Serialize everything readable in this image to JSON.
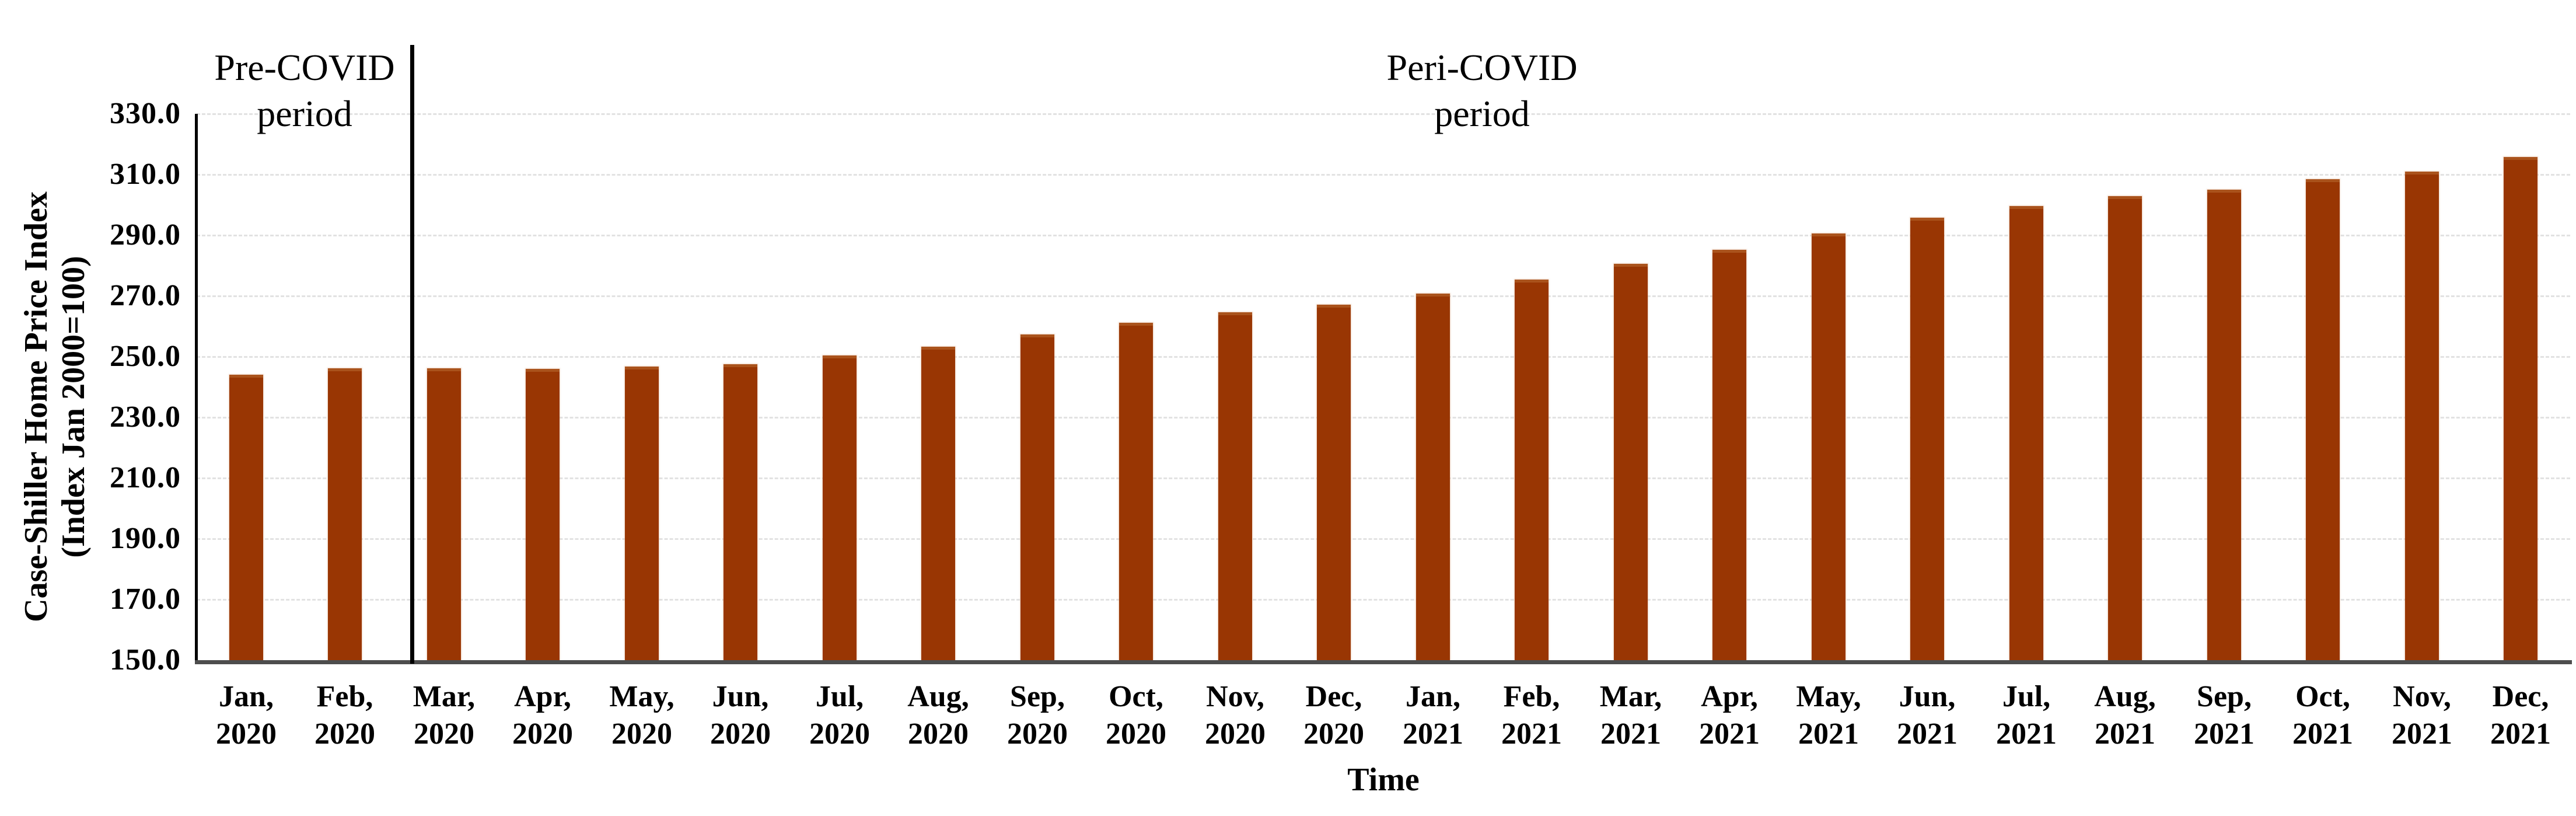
{
  "chart_data": {
    "type": "bar",
    "title": "",
    "xlabel": "Time",
    "ylabel_line1": "Case-Shiller Home Price Index",
    "ylabel_line2": "(Index Jan 2000=100)",
    "ylim": [
      150,
      330
    ],
    "ytick_step": 20,
    "yticks": [
      {
        "value": 330,
        "label": "330.0"
      },
      {
        "value": 310,
        "label": "310.0"
      },
      {
        "value": 290,
        "label": "290.0"
      },
      {
        "value": 270,
        "label": "270.0"
      },
      {
        "value": 250,
        "label": "250.0"
      },
      {
        "value": 230,
        "label": "230.0"
      },
      {
        "value": 210,
        "label": "210.0"
      },
      {
        "value": 190,
        "label": "190.0"
      },
      {
        "value": 170,
        "label": "170.0"
      },
      {
        "value": 150,
        "label": "150.0"
      }
    ],
    "grid": "horizontal-dashed-light-gray",
    "legend": "none",
    "bar_color": "#993603",
    "bar_top_highlight_color": "#aa531c",
    "axis_line_color": "#4d4d4d",
    "categories": [
      {
        "month": "Jan,",
        "year": "2020"
      },
      {
        "month": "Feb,",
        "year": "2020"
      },
      {
        "month": "Mar,",
        "year": "2020"
      },
      {
        "month": "Apr,",
        "year": "2020"
      },
      {
        "month": "May,",
        "year": "2020"
      },
      {
        "month": "Jun,",
        "year": "2020"
      },
      {
        "month": "Jul,",
        "year": "2020"
      },
      {
        "month": "Aug,",
        "year": "2020"
      },
      {
        "month": "Sep,",
        "year": "2020"
      },
      {
        "month": "Oct,",
        "year": "2020"
      },
      {
        "month": "Nov,",
        "year": "2020"
      },
      {
        "month": "Dec,",
        "year": "2020"
      },
      {
        "month": "Jan,",
        "year": "2021"
      },
      {
        "month": "Feb,",
        "year": "2021"
      },
      {
        "month": "Mar,",
        "year": "2021"
      },
      {
        "month": "Apr,",
        "year": "2021"
      },
      {
        "month": "May,",
        "year": "2021"
      },
      {
        "month": "Jun,",
        "year": "2021"
      },
      {
        "month": "Jul,",
        "year": "2021"
      },
      {
        "month": "Aug,",
        "year": "2021"
      },
      {
        "month": "Sep,",
        "year": "2021"
      },
      {
        "month": "Oct,",
        "year": "2021"
      },
      {
        "month": "Nov,",
        "year": "2021"
      },
      {
        "month": "Dec,",
        "year": "2021"
      }
    ],
    "values": [
      244.0,
      246.2,
      246.1,
      245.9,
      246.8,
      247.5,
      250.3,
      253.3,
      257.3,
      261.2,
      264.7,
      267.2,
      270.8,
      275.4,
      280.6,
      285.2,
      290.5,
      295.8,
      299.6,
      302.9,
      305.0,
      308.5,
      310.9,
      315.7
    ],
    "annotations": [
      {
        "id": "pre-covid",
        "line1": "Pre-COVID",
        "line2": "period"
      },
      {
        "id": "peri-covid",
        "line1": "Peri-COVID",
        "line2": "period"
      }
    ],
    "divider": {
      "description": "vertical black line separating periods",
      "between_categories": [
        "Feb, 2020",
        "Mar, 2020"
      ]
    }
  }
}
